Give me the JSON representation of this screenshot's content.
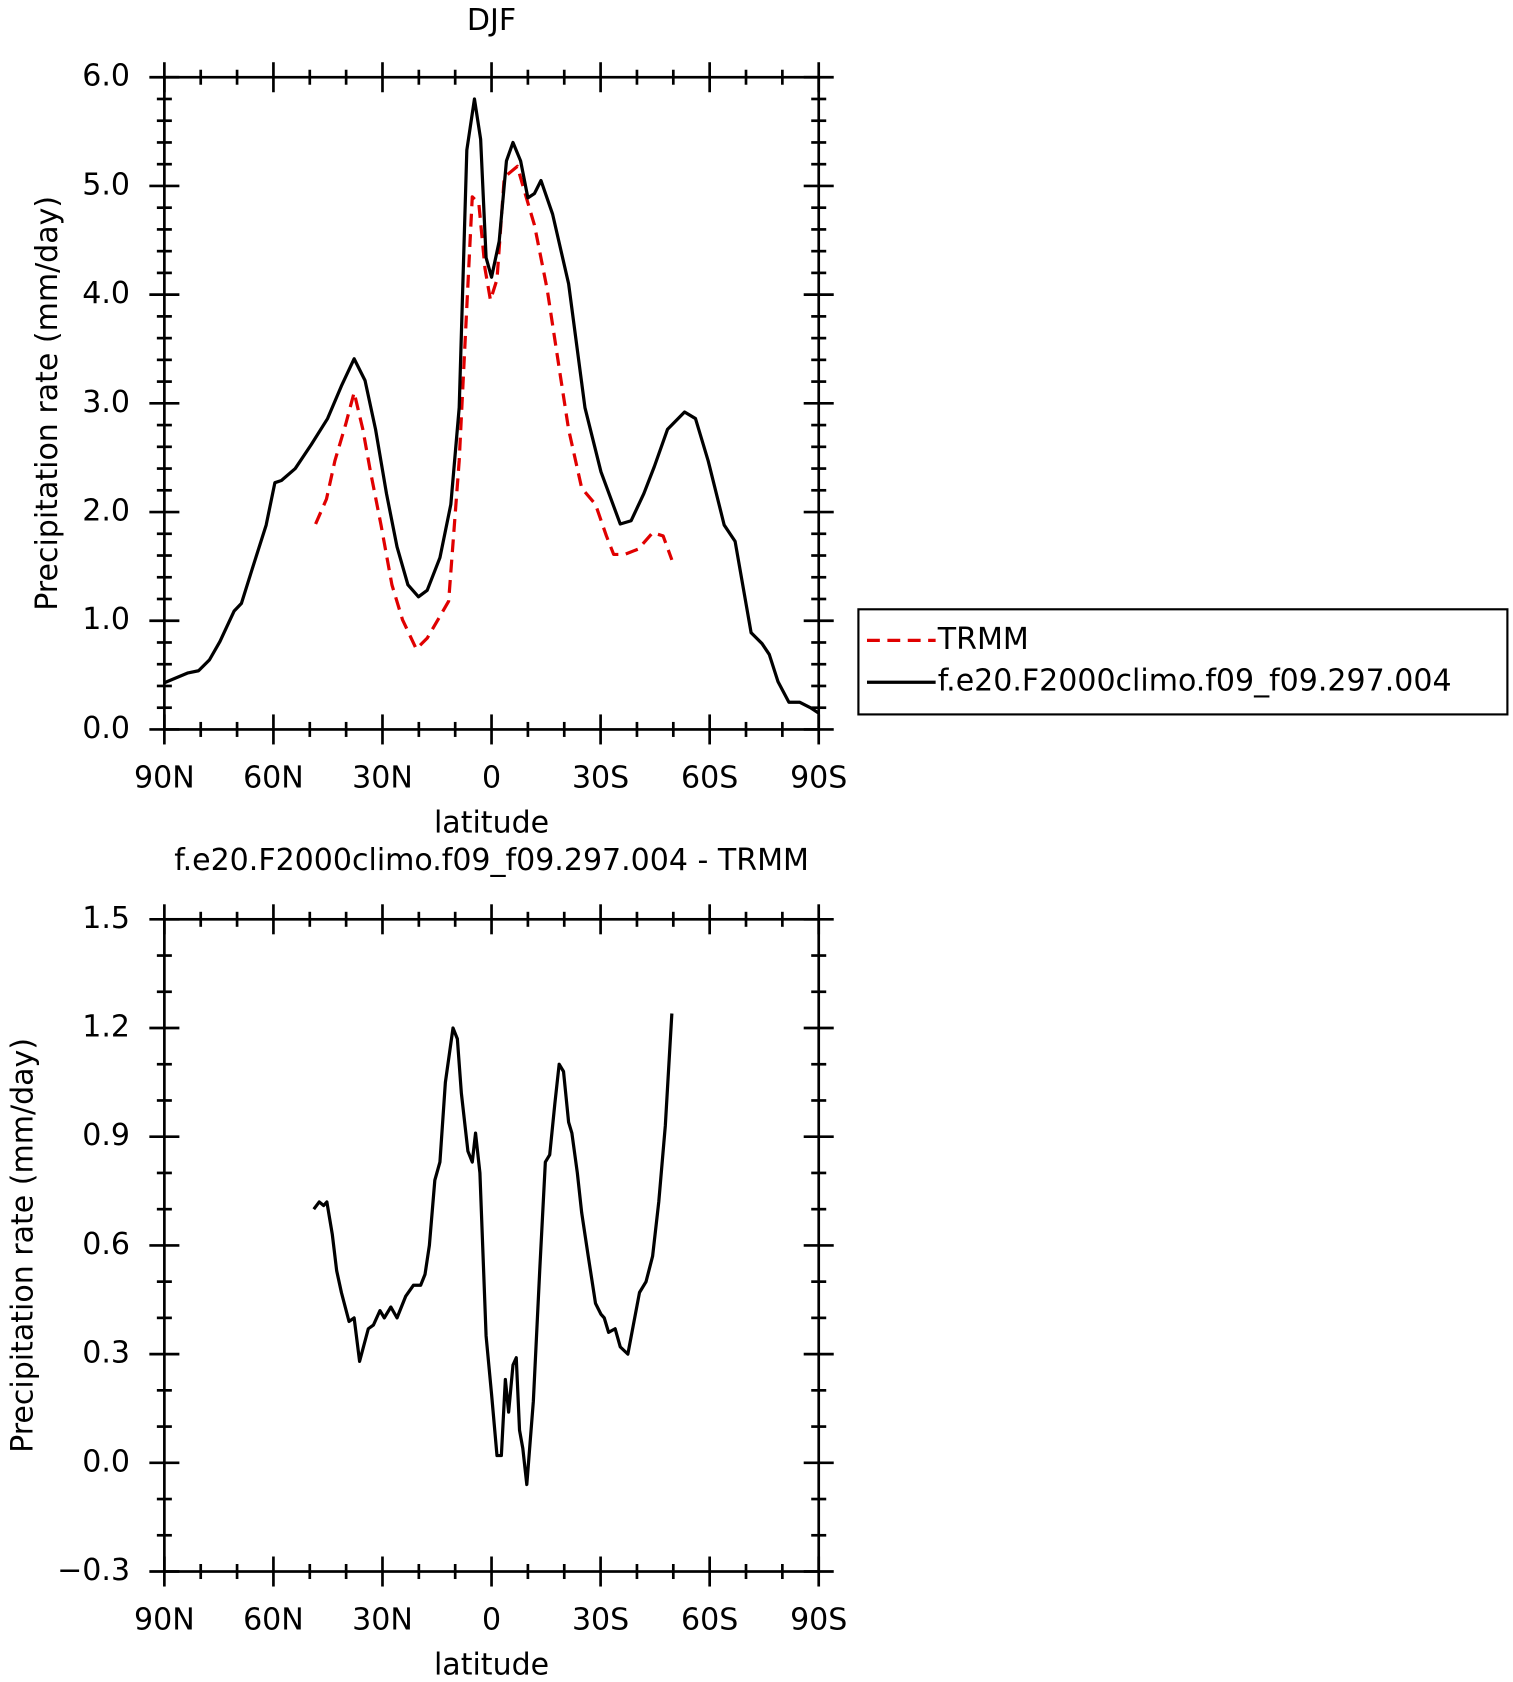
{
  "chart_data": [
    {
      "type": "line",
      "title": "DJF",
      "x_label": "latitude",
      "y_label": "Precipitation rate (mm/day)",
      "xlim": [
        90,
        -90
      ],
      "xticks": [
        {
          "value": 90,
          "label": "90N"
        },
        {
          "value": 60,
          "label": "60N"
        },
        {
          "value": 30,
          "label": "30N"
        },
        0,
        {
          "value": -30,
          "label": "30S"
        },
        {
          "value": -60,
          "label": "60S"
        },
        {
          "value": -90,
          "label": "90S"
        }
      ],
      "ylim": [
        0,
        6
      ],
      "yticks": [
        {
          "value": 0,
          "label": "0.0"
        },
        {
          "value": 1,
          "label": "1.0"
        },
        {
          "value": 2,
          "label": "2.0"
        },
        {
          "value": 3,
          "label": "3.0"
        },
        {
          "value": 4,
          "label": "4.0"
        },
        {
          "value": 5,
          "label": "5.0"
        },
        {
          "value": 6,
          "label": "6.0"
        }
      ],
      "legend": "right",
      "series": [
        {
          "name": "TRMM",
          "color": "#e00000",
          "dash": "dashed",
          "x": [
            48.4,
            45.4,
            43.1,
            40.1,
            37.8,
            35.4,
            33.3,
            30.4,
            27.4,
            24.5,
            20.7,
            17.7,
            14.2,
            11.8,
            8.9,
            5.3,
            3.5,
            1.8,
            0.3,
            -1.5,
            -3.5,
            -5.3,
            -7.1,
            -8.8,
            -11.8,
            -15.3,
            -18.9,
            -21.2,
            -24.8,
            -28.6,
            -31.6,
            -33.6,
            -36.6,
            -40.4,
            -44.3,
            -47.2,
            -49.6
          ],
          "values": [
            1.89,
            2.12,
            2.47,
            2.81,
            3.1,
            2.76,
            2.37,
            1.88,
            1.33,
            1.01,
            0.74,
            0.84,
            1.04,
            1.18,
            2.47,
            4.9,
            4.84,
            4.24,
            3.95,
            4.14,
            5.08,
            5.13,
            5.18,
            4.98,
            4.64,
            4.05,
            3.26,
            2.76,
            2.22,
            2.07,
            1.78,
            1.61,
            1.61,
            1.66,
            1.81,
            1.78,
            1.56
          ]
        },
        {
          "name": "f.e20.F2000climo.f09_f09.297.004",
          "color": "#000000",
          "dash": "solid",
          "x": [
            90,
            83.5,
            80.6,
            77.6,
            74.7,
            70.8,
            68.8,
            65.8,
            62,
            59.6,
            57.8,
            54,
            49.6,
            45.1,
            41.3,
            37.8,
            34.8,
            31.9,
            28.9,
            26,
            23,
            20.1,
            17.7,
            14.2,
            11.2,
            8.9,
            6.8,
            4.7,
            3,
            1.5,
            0,
            -2.1,
            -4.1,
            -5.9,
            -8,
            -10,
            -11.8,
            -13.6,
            -16.8,
            -21.2,
            -25.7,
            -30.1,
            -35.4,
            -38.4,
            -41.9,
            -44.8,
            -48.4,
            -53.1,
            -56.1,
            -59.6,
            -64,
            -67,
            -71.4,
            -74.4,
            -76.4,
            -78.8,
            -81.8,
            -84.8,
            -87.7,
            -90
          ],
          "values": [
            0.43,
            0.52,
            0.54,
            0.64,
            0.81,
            1.09,
            1.16,
            1.48,
            1.88,
            2.27,
            2.29,
            2.4,
            2.62,
            2.86,
            3.16,
            3.41,
            3.21,
            2.76,
            2.17,
            1.68,
            1.33,
            1.22,
            1.28,
            1.58,
            2.07,
            2.96,
            5.33,
            5.8,
            5.43,
            4.34,
            4.16,
            4.49,
            5.23,
            5.4,
            5.23,
            4.89,
            4.93,
            5.05,
            4.74,
            4.1,
            2.96,
            2.37,
            1.89,
            1.92,
            2.17,
            2.42,
            2.76,
            2.92,
            2.86,
            2.47,
            1.88,
            1.73,
            0.89,
            0.79,
            0.69,
            0.44,
            0.25,
            0.25,
            0.2,
            0.15
          ]
        }
      ]
    },
    {
      "type": "line",
      "title": "f.e20.F2000climo.f09_f09.297.004 - TRMM",
      "x_label": "latitude",
      "y_label": "Precipitation rate (mm/day)",
      "xlim": [
        90,
        -90
      ],
      "xticks": [
        {
          "value": 90,
          "label": "90N"
        },
        {
          "value": 60,
          "label": "60N"
        },
        {
          "value": 30,
          "label": "30N"
        },
        0,
        {
          "value": -30,
          "label": "30S"
        },
        {
          "value": -60,
          "label": "60S"
        },
        {
          "value": -90,
          "label": "90S"
        }
      ],
      "ylim": [
        -0.3,
        1.5
      ],
      "yticks": [
        {
          "value": -0.3,
          "label": "−0.3"
        },
        {
          "value": 0,
          "label": "0.0"
        },
        0.3,
        0.6,
        0.9,
        1.2,
        1.5
      ],
      "series": [
        {
          "color": "#000000",
          "dash": "solid",
          "x": [
            48.9,
            47.4,
            46.2,
            45.3,
            43.8,
            42.6,
            41.3,
            39.2,
            37.8,
            36.3,
            33.9,
            32.5,
            30.7,
            29.5,
            27.7,
            26,
            23.6,
            21.5,
            19.5,
            18.3,
            17.1,
            15.6,
            14.2,
            12.7,
            10.6,
            9.4,
            8.3,
            6.5,
            5.3,
            4.4,
            3.2,
            1.5,
            0,
            -1.5,
            -2.7,
            -3.8,
            -4.7,
            -5.9,
            -6.8,
            -7.7,
            -8.6,
            -9.7,
            -11.5,
            -13.3,
            -14.8,
            -16,
            -17.4,
            -18.6,
            -19.8,
            -21.2,
            -22.1,
            -23.6,
            -24.8,
            -26.6,
            -28.6,
            -30.1,
            -31,
            -32.2,
            -34,
            -35.4,
            -37.5,
            -39,
            -40.7,
            -42.5,
            -44.3,
            -46,
            -47.8,
            -49.6
          ],
          "values": [
            0.7,
            0.72,
            0.71,
            0.72,
            0.63,
            0.53,
            0.47,
            0.39,
            0.4,
            0.28,
            0.37,
            0.38,
            0.42,
            0.4,
            0.43,
            0.4,
            0.46,
            0.49,
            0.49,
            0.52,
            0.6,
            0.78,
            0.83,
            1.05,
            1.2,
            1.17,
            1.02,
            0.86,
            0.83,
            0.91,
            0.8,
            0.35,
            0.19,
            0.02,
            0.02,
            0.23,
            0.14,
            0.27,
            0.29,
            0.09,
            0.04,
            -0.06,
            0.17,
            0.54,
            0.83,
            0.85,
            0.99,
            1.1,
            1.08,
            0.94,
            0.91,
            0.8,
            0.69,
            0.57,
            0.44,
            0.41,
            0.4,
            0.36,
            0.37,
            0.32,
            0.3,
            0.38,
            0.47,
            0.5,
            0.57,
            0.72,
            0.93,
            1.24
          ]
        }
      ]
    }
  ]
}
